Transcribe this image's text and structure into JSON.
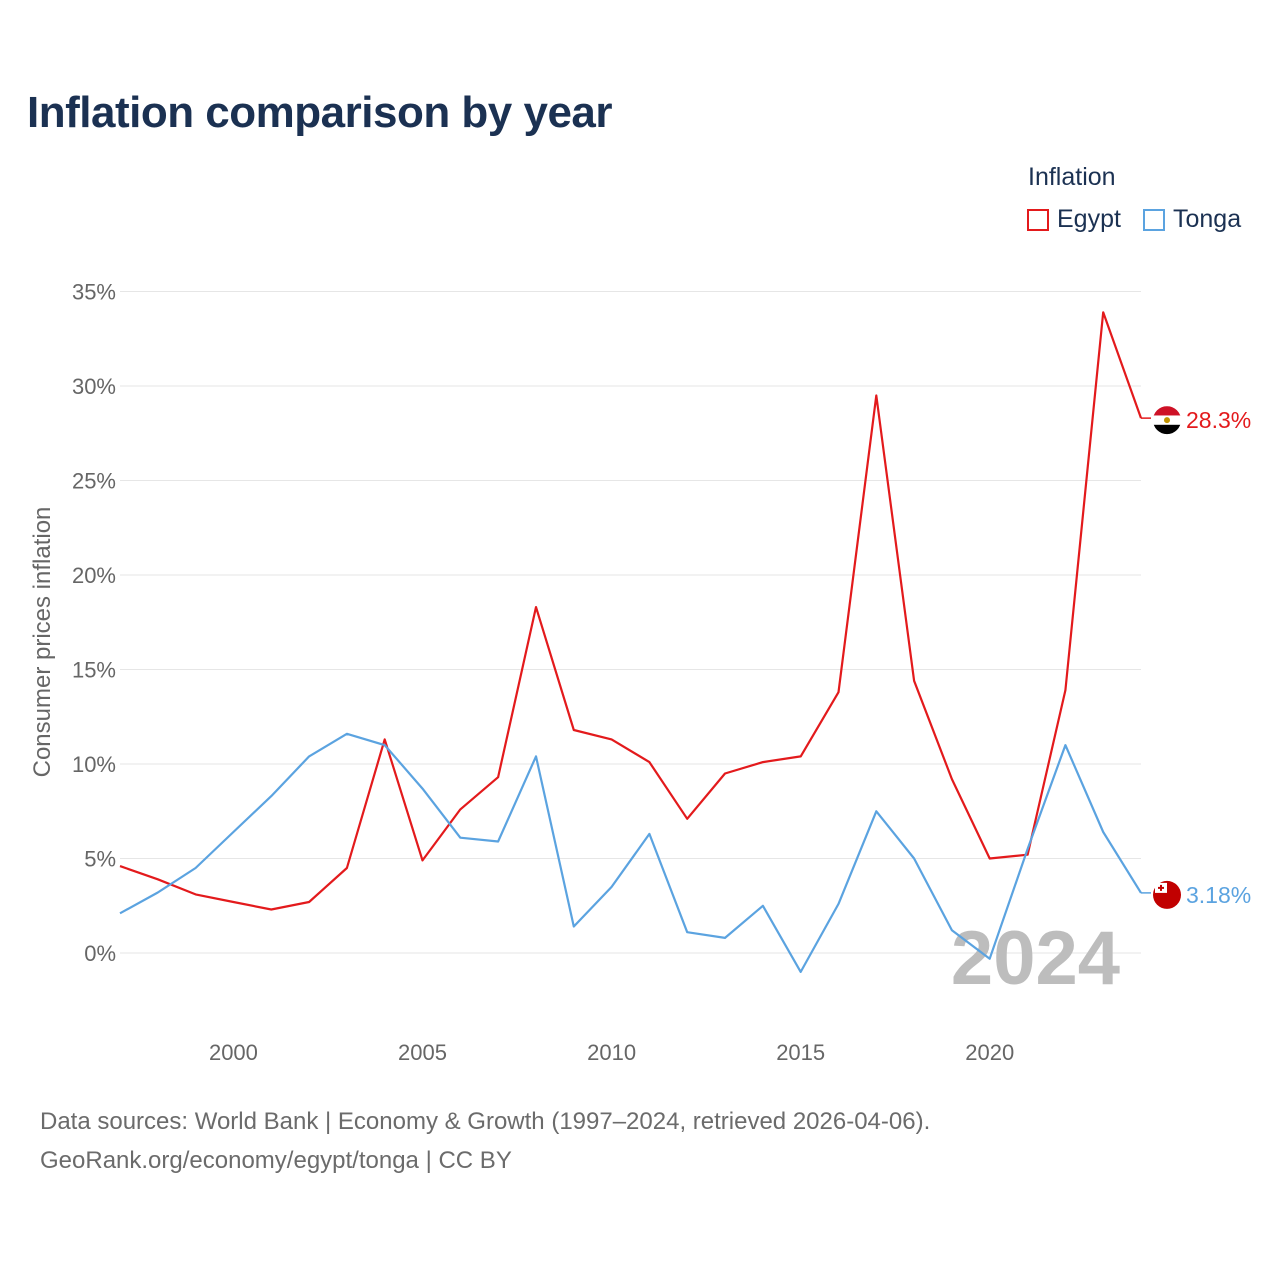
{
  "title": "Inflation comparison by year",
  "legend": {
    "title": "Inflation",
    "items": [
      {
        "name": "Egypt",
        "color": "#e31a1c"
      },
      {
        "name": "Tonga",
        "color": "#5ba3e0"
      }
    ]
  },
  "sources": {
    "line1": "Data sources: World Bank | Economy & Growth (1997–2024, retrieved 2026-04-06).",
    "line2": "GeoRank.org/economy/egypt/tonga | CC BY"
  },
  "chart_data": {
    "type": "line",
    "title": "Inflation comparison by year",
    "xlabel": "",
    "ylabel": "Consumer prices inflation",
    "x": [
      1997,
      1998,
      1999,
      2000,
      2001,
      2002,
      2003,
      2004,
      2005,
      2006,
      2007,
      2008,
      2009,
      2010,
      2011,
      2012,
      2013,
      2014,
      2015,
      2016,
      2017,
      2018,
      2019,
      2020,
      2021,
      2022,
      2023,
      2024
    ],
    "xlim": [
      1997,
      2024
    ],
    "ylim": [
      -3,
      35
    ],
    "x_ticks": [
      "2000",
      "2005",
      "2010",
      "2015",
      "2020"
    ],
    "y_ticks": [
      "0%",
      "5%",
      "10%",
      "15%",
      "20%",
      "25%",
      "30%",
      "35%"
    ],
    "grid": true,
    "legend_position": "top-right",
    "watermark_year": "2024",
    "series": [
      {
        "name": "Egypt",
        "color": "#e31a1c",
        "values": [
          4.6,
          3.9,
          3.1,
          2.7,
          2.3,
          2.7,
          4.5,
          11.3,
          4.9,
          7.6,
          9.3,
          18.3,
          11.8,
          11.3,
          10.1,
          7.1,
          9.5,
          10.1,
          10.4,
          13.8,
          29.5,
          14.4,
          9.2,
          5.0,
          5.2,
          13.9,
          33.9,
          28.3
        ],
        "end_label": "28.3%"
      },
      {
        "name": "Tonga",
        "color": "#5ba3e0",
        "values": [
          2.1,
          3.2,
          4.5,
          6.4,
          8.3,
          10.4,
          11.6,
          11.0,
          8.7,
          6.1,
          5.9,
          10.4,
          1.4,
          3.5,
          6.3,
          1.1,
          0.8,
          2.5,
          -1.0,
          2.6,
          7.5,
          5.0,
          1.2,
          -0.3,
          5.5,
          11.0,
          6.4,
          3.18
        ],
        "end_label": "3.18%"
      }
    ]
  }
}
